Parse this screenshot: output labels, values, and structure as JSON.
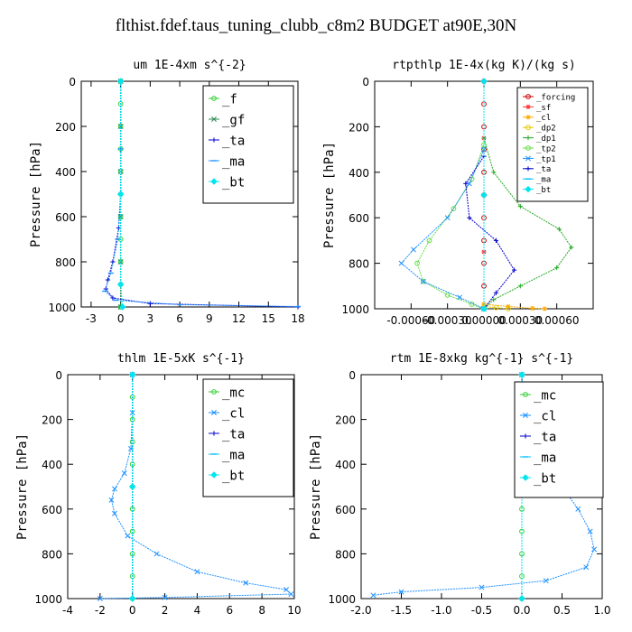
{
  "title": "flthist.fdef.taus_tuning_clubb_c8m2  BUDGET at90E,30N",
  "chart_data": [
    {
      "type": "line",
      "title": "um  1E-4xm s^{-2}",
      "ylabel": "Pressure [hPa]",
      "xlim": [
        -4,
        18
      ],
      "ylim": [
        1000,
        0
      ],
      "xticks": [
        -3,
        0,
        3,
        6,
        9,
        12,
        15,
        18
      ],
      "yticks": [
        0,
        200,
        400,
        600,
        800,
        1000
      ],
      "legend_position": "top-right",
      "series": [
        {
          "name": "_f",
          "color": "#32cd32",
          "marker": "o",
          "values": [
            [
              0,
              0
            ],
            [
              0,
              100
            ],
            [
              0,
              200
            ],
            [
              0,
              300
            ],
            [
              0,
              400
            ],
            [
              0,
              500
            ],
            [
              0,
              600
            ],
            [
              0,
              700
            ],
            [
              0,
              800
            ],
            [
              0,
              900
            ],
            [
              0,
              1000
            ]
          ]
        },
        {
          "name": "_gf",
          "color": "#2e8b57",
          "marker": "x",
          "values": [
            [
              0,
              0
            ],
            [
              0,
              200
            ],
            [
              0,
              400
            ],
            [
              0,
              600
            ],
            [
              0,
              800
            ],
            [
              0,
              1000
            ]
          ]
        },
        {
          "name": "_ta",
          "color": "#0000cd",
          "marker": "+",
          "values": [
            [
              0,
              0
            ],
            [
              0,
              300
            ],
            [
              0,
              500
            ],
            [
              -0.2,
              650
            ],
            [
              -0.8,
              800
            ],
            [
              -1.3,
              880
            ],
            [
              -1.5,
              920
            ],
            [
              -0.8,
              960
            ],
            [
              3,
              985
            ],
            [
              18,
              1000
            ]
          ]
        },
        {
          "name": "_ma",
          "color": "#1e90ff",
          "marker": "-",
          "values": [
            [
              0,
              0
            ],
            [
              0,
              300
            ],
            [
              0,
              500
            ],
            [
              -0.3,
              700
            ],
            [
              -1.0,
              850
            ],
            [
              -1.6,
              930
            ],
            [
              -0.5,
              970
            ],
            [
              6,
              990
            ],
            [
              18,
              998
            ]
          ]
        },
        {
          "name": "_bt",
          "color": "#00e5ee",
          "marker": "d",
          "values": [
            [
              0,
              0
            ],
            [
              0,
              500
            ],
            [
              0,
              900
            ],
            [
              0.2,
              1000
            ]
          ]
        }
      ]
    },
    {
      "type": "line",
      "title": "rtpthlp  1E-4x(kg K)/(kg s)",
      "ylabel": "Pressure [hPa]",
      "xlim": [
        -0.0009,
        0.0009
      ],
      "ylim": [
        1000,
        0
      ],
      "xticks": [
        -0.0006,
        -0.0003,
        0.0,
        0.0003,
        0.0006
      ],
      "xticklabels": [
        "-0.00060",
        "-0.00030",
        "0.00000",
        "0.00030",
        "0.00060"
      ],
      "yticks": [
        0,
        200,
        400,
        600,
        800,
        1000
      ],
      "legend_position": "top-right",
      "series": [
        {
          "name": "_forcing",
          "color": "#cc0000",
          "marker": "o",
          "values": [
            [
              0,
              0
            ],
            [
              0,
              100
            ],
            [
              0,
              200
            ],
            [
              0,
              300
            ],
            [
              0,
              400
            ],
            [
              0,
              500
            ],
            [
              0,
              600
            ],
            [
              0,
              700
            ],
            [
              0,
              800
            ],
            [
              0,
              900
            ],
            [
              0,
              1000
            ]
          ]
        },
        {
          "name": "_sf",
          "color": "#ff3333",
          "marker": "*",
          "values": [
            [
              0,
              0
            ],
            [
              0,
              250
            ],
            [
              0,
              500
            ],
            [
              0,
              750
            ],
            [
              0,
              1000
            ]
          ]
        },
        {
          "name": "_cl",
          "color": "#ffaa00",
          "marker": "*",
          "values": [
            [
              0,
              980
            ],
            [
              0.0002,
              990
            ],
            [
              0.0004,
              998
            ],
            [
              0.0005,
              1000
            ]
          ]
        },
        {
          "name": "_dp2",
          "color": "#e6c800",
          "marker": "o",
          "values": [
            [
              0,
              990
            ],
            [
              0.0001,
              995
            ],
            [
              0.0002,
              1000
            ]
          ]
        },
        {
          "name": "_dp1",
          "color": "#22aa22",
          "marker": "+",
          "values": [
            [
              0,
              250
            ],
            [
              8e-05,
              400
            ],
            [
              0.0003,
              550
            ],
            [
              0.00062,
              650
            ],
            [
              0.00072,
              730
            ],
            [
              0.0006,
              820
            ],
            [
              0.0003,
              900
            ],
            [
              8e-05,
              960
            ],
            [
              0,
              1000
            ]
          ]
        },
        {
          "name": "_tp2",
          "color": "#66dd44",
          "marker": "o",
          "values": [
            [
              0,
              280
            ],
            [
              -0.0001,
              430
            ],
            [
              -0.00025,
              560
            ],
            [
              -0.00045,
              700
            ],
            [
              -0.00055,
              800
            ],
            [
              -0.0005,
              880
            ],
            [
              -0.0003,
              940
            ],
            [
              -0.0001,
              980
            ],
            [
              0,
              1000
            ]
          ]
        },
        {
          "name": "_tp1",
          "color": "#1e90ff",
          "marker": "x",
          "values": [
            [
              0,
              300
            ],
            [
              -0.00012,
              450
            ],
            [
              -0.0003,
              600
            ],
            [
              -0.00058,
              740
            ],
            [
              -0.00068,
              800
            ],
            [
              -0.0005,
              880
            ],
            [
              -0.0002,
              950
            ],
            [
              0,
              1000
            ]
          ]
        },
        {
          "name": "_ta",
          "color": "#0000cd",
          "marker": "+",
          "values": [
            [
              0,
              330
            ],
            [
              -0.00015,
              450
            ],
            [
              -0.00012,
              600
            ],
            [
              0.0001,
              700
            ],
            [
              0.00025,
              830
            ],
            [
              0.0001,
              930
            ],
            [
              0,
              1000
            ]
          ]
        },
        {
          "name": "_ma",
          "color": "#00bfff",
          "marker": "-",
          "values": [
            [
              0,
              0
            ],
            [
              0,
              500
            ],
            [
              0,
              1000
            ]
          ]
        },
        {
          "name": "_bt",
          "color": "#00e5ee",
          "marker": "d",
          "values": [
            [
              0,
              0
            ],
            [
              0,
              500
            ],
            [
              0,
              1000
            ]
          ]
        }
      ]
    },
    {
      "type": "line",
      "title": "thlm  1E-5xK s^{-1}",
      "ylabel": "Pressure [hPa]",
      "xlim": [
        -4,
        10
      ],
      "ylim": [
        1000,
        0
      ],
      "xticks": [
        -4,
        -2,
        0,
        2,
        4,
        6,
        8,
        10
      ],
      "yticks": [
        0,
        200,
        400,
        600,
        800,
        1000
      ],
      "legend_position": "top-right",
      "series": [
        {
          "name": "_mc",
          "color": "#32cd32",
          "marker": "o",
          "values": [
            [
              0,
              0
            ],
            [
              0,
              100
            ],
            [
              0,
              200
            ],
            [
              0,
              300
            ],
            [
              0,
              400
            ],
            [
              0,
              500
            ],
            [
              0,
              600
            ],
            [
              0,
              700
            ],
            [
              0,
              800
            ],
            [
              0,
              900
            ],
            [
              0,
              1000
            ]
          ]
        },
        {
          "name": "_cl",
          "color": "#1e90ff",
          "marker": "x",
          "values": [
            [
              0,
              0
            ],
            [
              0,
              170
            ],
            [
              -0.1,
              330
            ],
            [
              -0.5,
              440
            ],
            [
              -1.1,
              510
            ],
            [
              -1.3,
              560
            ],
            [
              -1.1,
              620
            ],
            [
              -0.3,
              720
            ],
            [
              1.5,
              800
            ],
            [
              4,
              880
            ],
            [
              7,
              930
            ],
            [
              9.5,
              960
            ],
            [
              9.8,
              980
            ],
            [
              2,
              995
            ],
            [
              -2,
              1000
            ]
          ]
        },
        {
          "name": "_ta",
          "color": "#0000cd",
          "marker": "+",
          "values": [
            [
              0,
              0
            ],
            [
              0,
              500
            ],
            [
              0,
              1000
            ]
          ]
        },
        {
          "name": "_ma",
          "color": "#00bfff",
          "marker": "-",
          "values": [
            [
              0,
              0
            ],
            [
              0,
              500
            ],
            [
              0,
              1000
            ]
          ]
        },
        {
          "name": "_bt",
          "color": "#00e5ee",
          "marker": "d",
          "values": [
            [
              0,
              0
            ],
            [
              0,
              500
            ],
            [
              0,
              1000
            ]
          ]
        }
      ]
    },
    {
      "type": "line",
      "title": "rtm  1E-8xkg kg^{-1} s^{-1}",
      "ylabel": "Pressure [hPa]",
      "xlim": [
        -2.0,
        1.0
      ],
      "ylim": [
        1000,
        0
      ],
      "xticks": [
        -2.0,
        -1.5,
        -1.0,
        -0.5,
        0.0,
        0.5,
        1.0
      ],
      "xticklabels": [
        "-2.0",
        "-1.5",
        "-1.0",
        "-0.5",
        "0.0",
        "0.5",
        "1.0"
      ],
      "yticks": [
        0,
        200,
        400,
        600,
        800,
        1000
      ],
      "legend_position": "top-right",
      "series": [
        {
          "name": "_mc",
          "color": "#32cd32",
          "marker": "o",
          "values": [
            [
              0,
              0
            ],
            [
              0,
              100
            ],
            [
              0,
              200
            ],
            [
              0,
              300
            ],
            [
              0,
              400
            ],
            [
              0,
              500
            ],
            [
              0,
              600
            ],
            [
              0,
              700
            ],
            [
              0,
              800
            ],
            [
              0,
              900
            ],
            [
              0,
              1000
            ]
          ]
        },
        {
          "name": "_cl",
          "color": "#1e90ff",
          "marker": "x",
          "values": [
            [
              0,
              0
            ],
            [
              0.02,
              120
            ],
            [
              0.05,
              200
            ],
            [
              0.06,
              250
            ],
            [
              0.1,
              320
            ],
            [
              0.25,
              420
            ],
            [
              0.5,
              500
            ],
            [
              0.7,
              600
            ],
            [
              0.85,
              700
            ],
            [
              0.9,
              780
            ],
            [
              0.8,
              860
            ],
            [
              0.3,
              920
            ],
            [
              -0.5,
              950
            ],
            [
              -1.5,
              970
            ],
            [
              -1.85,
              985
            ]
          ]
        },
        {
          "name": "_ta",
          "color": "#0000cd",
          "marker": "+",
          "values": [
            [
              0,
              0
            ],
            [
              0,
              500
            ],
            [
              0,
              1000
            ]
          ]
        },
        {
          "name": "_ma",
          "color": "#00bfff",
          "marker": "-",
          "values": [
            [
              0,
              0
            ],
            [
              0,
              500
            ],
            [
              0,
              1000
            ]
          ]
        },
        {
          "name": "_bt",
          "color": "#00e5ee",
          "marker": "d",
          "values": [
            [
              0,
              0
            ],
            [
              0,
              500
            ],
            [
              0,
              1000
            ]
          ]
        }
      ]
    }
  ]
}
